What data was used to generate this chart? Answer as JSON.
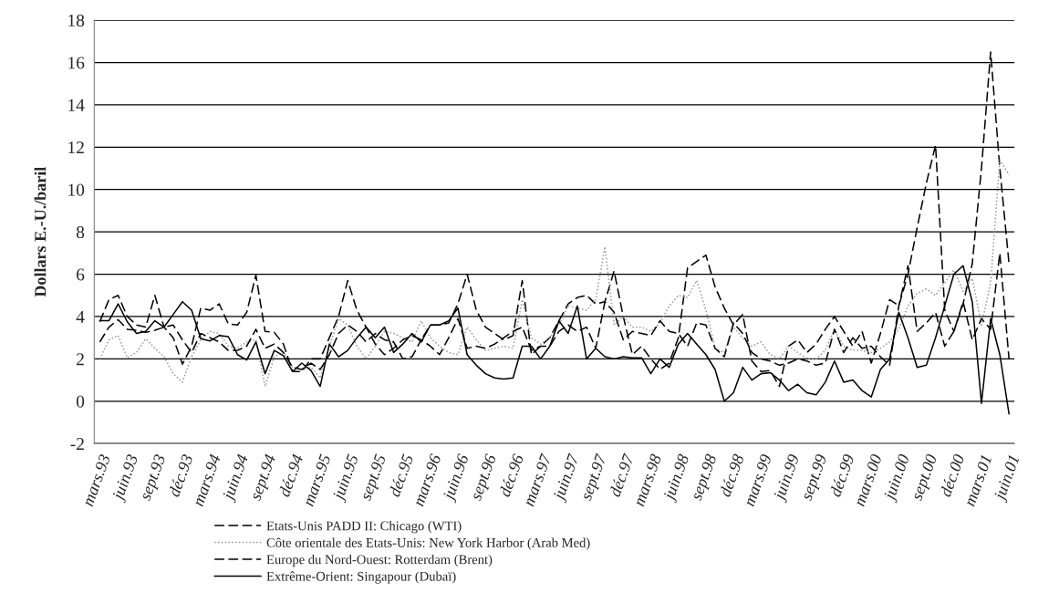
{
  "chart_data": {
    "type": "line",
    "ylabel": "Dollars E.-U./baril",
    "categories": [
      "mars.93",
      null,
      null,
      "juin.93",
      null,
      null,
      "sept.93",
      null,
      null,
      "déc.93",
      null,
      null,
      "mars.94",
      null,
      null,
      "juin.94",
      null,
      null,
      "sept.94",
      null,
      null,
      "déc.94",
      null,
      null,
      "mars.95",
      null,
      null,
      "juin.95",
      null,
      null,
      "sept.95",
      null,
      null,
      "déc.95",
      null,
      null,
      "mars.96",
      null,
      null,
      "juin.96",
      null,
      null,
      "sept.96",
      null,
      null,
      "déc.96",
      null,
      null,
      "mars.97",
      null,
      null,
      "juin.97",
      null,
      null,
      "sept.97",
      null,
      null,
      "déc.97",
      null,
      null,
      "mars.98",
      null,
      null,
      "juin.98",
      null,
      null,
      "sept.98",
      null,
      null,
      "déc.98",
      null,
      null,
      "mars.99",
      null,
      null,
      "juin.99",
      null,
      null,
      "sept.99",
      null,
      null,
      "déc.99",
      null,
      null,
      "mars.00",
      null,
      null,
      "juin.00",
      null,
      null,
      "sept.00",
      null,
      null,
      "déc.00",
      null,
      null,
      "mars.01",
      null,
      null,
      "juin.01"
    ],
    "series": [
      {
        "name": "Etats-Unis PADD II: Chicago (WTI)",
        "color": "#000000",
        "line_style": "dashed",
        "values": [
          3.75,
          4.8,
          5.0,
          4.0,
          3.6,
          3.5,
          5.0,
          3.5,
          3.0,
          1.75,
          2.6,
          4.4,
          4.3,
          4.6,
          3.65,
          3.6,
          4.2,
          5.95,
          3.3,
          3.25,
          2.7,
          1.4,
          1.4,
          2.0,
          2.0,
          3.0,
          4.0,
          5.7,
          4.3,
          3.5,
          2.7,
          2.2,
          2.5,
          2.9,
          3.1,
          2.9,
          3.6,
          3.6,
          3.7,
          4.6,
          6.0,
          4.3,
          3.5,
          3.2,
          2.9,
          3.1,
          5.7,
          2.2,
          2.6,
          3.0,
          3.8,
          4.6,
          4.9,
          5.0,
          4.6,
          4.7,
          6.15,
          4.0,
          2.2,
          2.6,
          2.0,
          1.5,
          1.8,
          3.0,
          6.3,
          6.6,
          6.9,
          5.4,
          4.4,
          3.6,
          4.1,
          1.9,
          1.4,
          1.45,
          0.7,
          2.6,
          2.9,
          2.3,
          2.7,
          3.4,
          4.0,
          3.3,
          2.6,
          3.3,
          1.8,
          3.2,
          4.8,
          4.5,
          6.0,
          8.2,
          10.3,
          12.1,
          4.3,
          3.3,
          4.6,
          6.5,
          11.0,
          16.5,
          11.0,
          6.5
        ]
      },
      {
        "name": "Côte orientale des Etats-Unis: New York Harbor (Arab Med)",
        "color": "#999999",
        "line_style": "dotted",
        "values": [
          2.0,
          2.9,
          3.1,
          2.05,
          2.3,
          2.95,
          2.5,
          2.1,
          1.3,
          0.9,
          2.1,
          2.9,
          3.3,
          3.2,
          2.6,
          2.5,
          2.8,
          2.9,
          0.7,
          2.1,
          2.3,
          1.6,
          1.5,
          1.6,
          1.1,
          2.6,
          3.9,
          3.6,
          2.6,
          2.0,
          2.6,
          3.3,
          3.2,
          3.0,
          2.8,
          3.8,
          3.0,
          2.6,
          2.3,
          2.2,
          3.5,
          2.9,
          2.4,
          2.5,
          2.6,
          2.5,
          4.8,
          3.0,
          2.7,
          3.0,
          3.6,
          4.5,
          4.4,
          4.3,
          4.8,
          7.3,
          3.6,
          4.0,
          3.5,
          3.5,
          3.3,
          3.7,
          4.5,
          5.0,
          4.9,
          5.7,
          4.3,
          2.5,
          2.3,
          3.5,
          3.0,
          2.6,
          2.8,
          2.2,
          2.0,
          2.6,
          2.3,
          2.0,
          2.0,
          2.4,
          3.4,
          2.6,
          2.4,
          2.4,
          2.3,
          2.5,
          2.8,
          3.4,
          4.5,
          5.1,
          5.3,
          5.0,
          5.6,
          6.2,
          5.2,
          5.8,
          3.6,
          5.6,
          11.4,
          10.7
        ]
      },
      {
        "name": "Europe du Nord-Ouest: Rotterdam (Brent)",
        "color": "#000000",
        "line_style": "dashed",
        "values": [
          2.8,
          3.5,
          3.85,
          3.4,
          3.35,
          3.25,
          3.35,
          3.5,
          3.6,
          2.9,
          2.3,
          3.2,
          3.0,
          2.8,
          2.4,
          2.4,
          2.6,
          3.4,
          2.5,
          2.7,
          2.3,
          1.6,
          1.5,
          1.8,
          1.5,
          2.2,
          3.2,
          3.6,
          3.3,
          2.8,
          3.2,
          2.9,
          2.8,
          2.0,
          2.1,
          2.9,
          2.6,
          2.2,
          3.0,
          3.9,
          2.5,
          2.6,
          2.5,
          2.7,
          3.0,
          3.3,
          3.5,
          2.4,
          2.6,
          2.6,
          3.3,
          3.6,
          3.3,
          3.5,
          2.5,
          4.7,
          4.2,
          2.9,
          3.3,
          3.2,
          3.1,
          3.8,
          3.3,
          3.2,
          2.6,
          3.7,
          3.6,
          2.5,
          2.1,
          3.7,
          3.2,
          2.3,
          2.0,
          1.9,
          1.7,
          1.8,
          2.0,
          1.9,
          1.7,
          1.8,
          3.4,
          2.3,
          3.0,
          2.5,
          2.6,
          2.1,
          1.7,
          4.5,
          6.4,
          3.3,
          3.7,
          4.2,
          2.6,
          3.3,
          4.7,
          2.9,
          3.9,
          3.4,
          7.0,
          2.0
        ]
      },
      {
        "name": "Extrême-Orient: Singapour (Dubaï)",
        "color": "#000000",
        "line_style": "solid",
        "values": [
          3.8,
          3.8,
          4.6,
          3.75,
          3.2,
          3.3,
          3.8,
          3.5,
          4.1,
          4.7,
          4.3,
          2.95,
          2.85,
          3.1,
          3.05,
          2.2,
          1.95,
          2.8,
          1.3,
          2.4,
          2.15,
          1.4,
          1.8,
          1.45,
          0.7,
          2.7,
          2.1,
          2.4,
          3.0,
          3.5,
          3.0,
          3.5,
          2.3,
          2.7,
          3.2,
          2.8,
          3.6,
          3.6,
          3.8,
          4.4,
          2.2,
          1.7,
          1.3,
          1.1,
          1.05,
          1.1,
          2.6,
          2.6,
          2.0,
          2.6,
          3.8,
          3.2,
          4.5,
          2.0,
          2.5,
          2.1,
          2.0,
          2.1,
          2.05,
          2.05,
          1.3,
          2.0,
          1.6,
          2.7,
          3.2,
          2.7,
          2.2,
          1.5,
          0.0,
          0.4,
          1.6,
          1.0,
          1.3,
          1.35,
          1.0,
          0.5,
          0.8,
          0.4,
          0.3,
          0.9,
          1.9,
          0.9,
          1.0,
          0.5,
          0.2,
          1.5,
          2.0,
          4.2,
          3.0,
          1.6,
          1.7,
          3.0,
          4.5,
          6.0,
          6.4,
          4.7,
          -0.1,
          3.9,
          2.2,
          -0.6
        ]
      }
    ],
    "ylim": [
      -2,
      18
    ],
    "yticks": [
      -2,
      0,
      2,
      4,
      6,
      8,
      10,
      12,
      14,
      16,
      18
    ],
    "grid": "y",
    "legend": "bottom"
  }
}
